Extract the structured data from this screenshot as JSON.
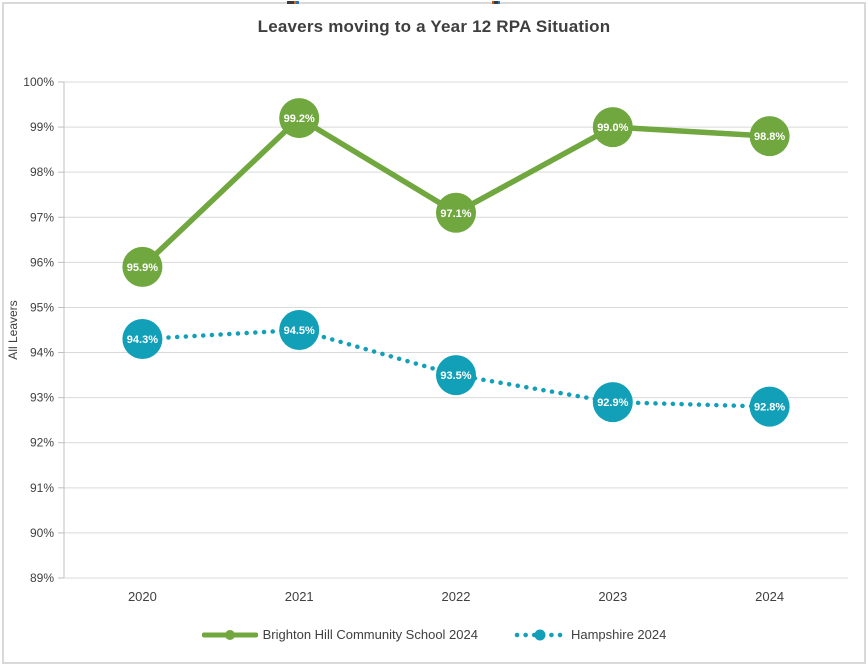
{
  "window": {
    "background": "#ffffff",
    "border_color": "#d9d9d9"
  },
  "chart_data": {
    "type": "line",
    "title": "Leavers moving to a Year 12 RPA Situation",
    "xlabel": "",
    "ylabel": "All Leavers",
    "categories": [
      "2020",
      "2021",
      "2022",
      "2023",
      "2024"
    ],
    "series": [
      {
        "name": "Brighton Hill Community School 2024",
        "values": [
          95.9,
          99.2,
          97.1,
          99.0,
          98.8
        ],
        "point_labels": [
          "95.9%",
          "99.2%",
          "97.1%",
          "99.0%",
          "98.8%"
        ],
        "color": "#70a73f",
        "line_style": "solid",
        "marker": "circle"
      },
      {
        "name": "Hampshire 2024",
        "values": [
          94.3,
          94.5,
          93.5,
          92.9,
          92.8
        ],
        "point_labels": [
          "94.3%",
          "94.5%",
          "93.5%",
          "92.9%",
          "92.8%"
        ],
        "color": "#129fb8",
        "line_style": "dotted",
        "marker": "circle"
      }
    ],
    "ylim": [
      89,
      100
    ],
    "ytick_step": 1,
    "ytick_labels": [
      "100%",
      "99%",
      "98%",
      "97%",
      "96%",
      "95%",
      "94%",
      "93%",
      "92%",
      "91%",
      "90%",
      "89%"
    ],
    "grid": true,
    "legend_position": "bottom",
    "grid_color": "#d9d9d9",
    "axis_color": "#bfbfbf",
    "text_color": "#404040",
    "point_label_color": "#ffffff"
  }
}
